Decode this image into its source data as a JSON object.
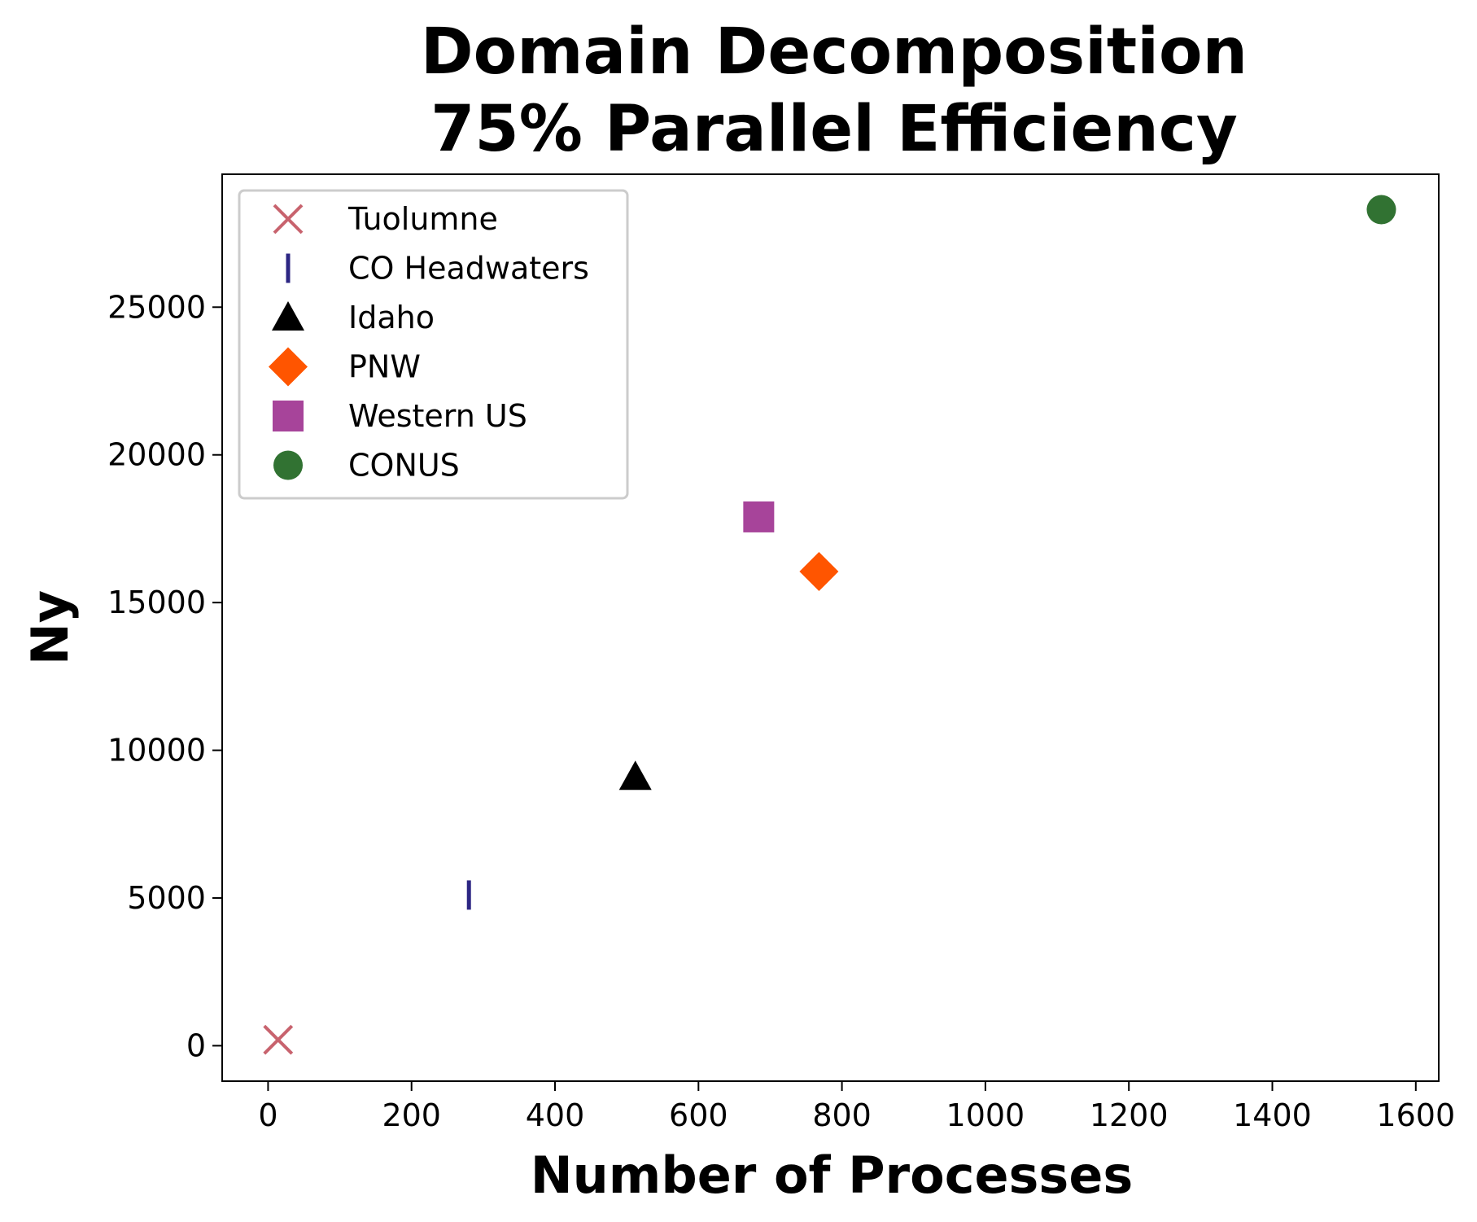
{
  "chart_data": {
    "type": "scatter",
    "title": [
      "Domain Decomposition",
      "75% Parallel Efficiency"
    ],
    "xlabel": "Number of Processes",
    "ylabel": "Ny",
    "xlim": [
      -64,
      1632
    ],
    "ylim": [
      -1200,
      29500
    ],
    "xticks": [
      0,
      200,
      400,
      600,
      800,
      1000,
      1200,
      1400,
      1600
    ],
    "yticks": [
      0,
      5000,
      10000,
      15000,
      20000,
      25000
    ],
    "grid": false,
    "legend_position": "upper-left",
    "series": [
      {
        "name": "Tuolumne",
        "marker": "x",
        "color": "#c8636e",
        "points": [
          {
            "x": 14,
            "y": 200
          }
        ]
      },
      {
        "name": "CO Headwaters",
        "marker": "vline",
        "color": "#2c2683",
        "points": [
          {
            "x": 280,
            "y": 5100
          }
        ]
      },
      {
        "name": "Idaho",
        "marker": "triangle",
        "color": "#000000",
        "points": [
          {
            "x": 512,
            "y": 9100
          }
        ]
      },
      {
        "name": "PNW",
        "marker": "diamond",
        "color": "#ff5500",
        "points": [
          {
            "x": 768,
            "y": 16050
          }
        ]
      },
      {
        "name": "Western US",
        "marker": "square",
        "color": "#a7449a",
        "points": [
          {
            "x": 684,
            "y": 17900
          }
        ]
      },
      {
        "name": "CONUS",
        "marker": "circle",
        "color": "#317232",
        "points": [
          {
            "x": 1552,
            "y": 28300
          }
        ]
      }
    ]
  }
}
